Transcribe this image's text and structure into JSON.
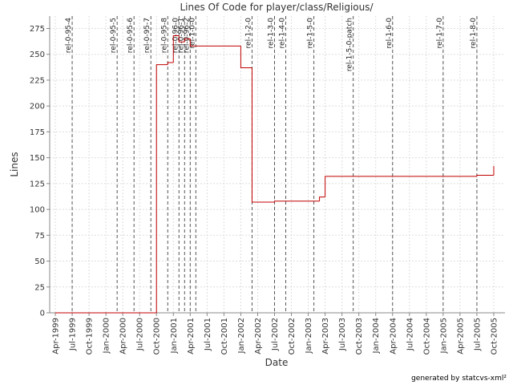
{
  "chart_data": {
    "type": "step",
    "title": "Lines Of Code for player/class/Religious/",
    "x_label": "Date",
    "y_label": "Lines",
    "footer": "generated by statcvs-xml²",
    "color": "#c00000",
    "x": [
      "1999-04",
      "2000-10",
      "2000-12",
      "2001-01",
      "2001-02",
      "2001-03",
      "2001-04",
      "2002-01",
      "2002-03",
      "2002-07",
      "2003-03",
      "2003-04",
      "2005-07",
      "2005-10"
    ],
    "values": [
      0,
      240,
      242,
      268,
      262,
      265,
      258,
      237,
      107,
      108,
      112,
      132,
      133,
      142
    ],
    "xlim": [
      "1999-03",
      "2005-12"
    ],
    "ylim": [
      0,
      287
    ],
    "yticks": [
      0,
      25,
      50,
      75,
      100,
      125,
      150,
      175,
      200,
      225,
      250,
      275
    ],
    "xticks": [
      {
        "value": "1999-04",
        "label": "Apr-1999"
      },
      {
        "value": "1999-07",
        "label": "Jul-1999"
      },
      {
        "value": "1999-10",
        "label": "Oct-1999"
      },
      {
        "value": "2000-01",
        "label": "Jan-2000"
      },
      {
        "value": "2000-04",
        "label": "Apr-2000"
      },
      {
        "value": "2000-07",
        "label": "Jul-2000"
      },
      {
        "value": "2000-10",
        "label": "Oct-2000"
      },
      {
        "value": "2001-01",
        "label": "Jan-2001"
      },
      {
        "value": "2001-04",
        "label": "Apr-2001"
      },
      {
        "value": "2001-07",
        "label": "Jul-2001"
      },
      {
        "value": "2001-10",
        "label": "Oct-2001"
      },
      {
        "value": "2002-01",
        "label": "Jan-2002"
      },
      {
        "value": "2002-04",
        "label": "Apr-2002"
      },
      {
        "value": "2002-07",
        "label": "Jul-2002"
      },
      {
        "value": "2002-10",
        "label": "Oct-2002"
      },
      {
        "value": "2003-01",
        "label": "Jan-2003"
      },
      {
        "value": "2003-04",
        "label": "Apr-2003"
      },
      {
        "value": "2003-07",
        "label": "Jul-2003"
      },
      {
        "value": "2003-10",
        "label": "Oct-2003"
      },
      {
        "value": "2004-01",
        "label": "Jan-2004"
      },
      {
        "value": "2004-04",
        "label": "Apr-2004"
      },
      {
        "value": "2004-07",
        "label": "Jul-2004"
      },
      {
        "value": "2004-10",
        "label": "Oct-2004"
      },
      {
        "value": "2005-01",
        "label": "Jan-2005"
      },
      {
        "value": "2005-04",
        "label": "Apr-2005"
      },
      {
        "value": "2005-07",
        "label": "Jul-2005"
      },
      {
        "value": "2005-10",
        "label": "Oct-2005"
      }
    ],
    "grid": true,
    "annotations": [
      {
        "x": "1999-07",
        "label": "rel-0-95-4"
      },
      {
        "x": "2000-03",
        "label": "rel-0-95-5"
      },
      {
        "x": "2000-06",
        "label": "rel-0-95-6"
      },
      {
        "x": "2000-09",
        "label": "rel-0-95-7"
      },
      {
        "x": "2000-12",
        "label": "rel-0-95-8"
      },
      {
        "x": "2001-02",
        "label": "rel-0-96-0"
      },
      {
        "x": "2001-03",
        "label": "rel-0-96-1"
      },
      {
        "x": "2001-04",
        "label": "rel-0-96-2"
      },
      {
        "x": "2001-05",
        "label": "rel-1-0-0"
      },
      {
        "x": "2002-03",
        "label": "rel-1-2-0"
      },
      {
        "x": "2002-07",
        "label": "rel-1-3-0"
      },
      {
        "x": "2002-09",
        "label": "rel-1-4-0"
      },
      {
        "x": "2003-02",
        "label": "rel-1-5-0"
      },
      {
        "x": "2003-09",
        "label": "rel-1-5-0-patch"
      },
      {
        "x": "2004-04",
        "label": "rel-1-6-0"
      },
      {
        "x": "2005-01",
        "label": "rel-1-7-0"
      },
      {
        "x": "2005-07",
        "label": "rel-1-8-0"
      }
    ]
  }
}
